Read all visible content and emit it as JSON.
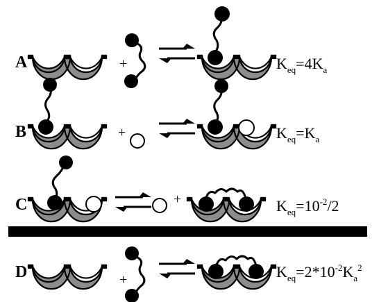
{
  "rows": [
    {
      "label": "A",
      "keq": {
        "base": "K",
        "sub": "eq",
        "mid": "=4K",
        "sub2": "a",
        "sup": ""
      }
    },
    {
      "label": "B",
      "keq": {
        "base": "K",
        "sub": "eq",
        "mid": "=K",
        "sub2": "a",
        "sup": ""
      }
    },
    {
      "label": "C",
      "keq": {
        "base": "K",
        "sub": "eq",
        "mid": "=10",
        "sup": "-2",
        "tail": "/2"
      }
    },
    {
      "label": "D",
      "keq": {
        "base": "K",
        "sub": "eq",
        "mid": "=2*10",
        "sup": "-2",
        "tail2": "K",
        "sub2": "a",
        "sup2": "2"
      }
    }
  ],
  "plus_sign": "+",
  "colors": {
    "receptor": "#8c8c8c",
    "ligand": "#000000",
    "competitor": "#ffffff",
    "bar": "#000000"
  },
  "icons": [
    "receptor-trough",
    "bivalent-ligand",
    "monovalent-ligand",
    "equilibrium-arrows"
  ]
}
